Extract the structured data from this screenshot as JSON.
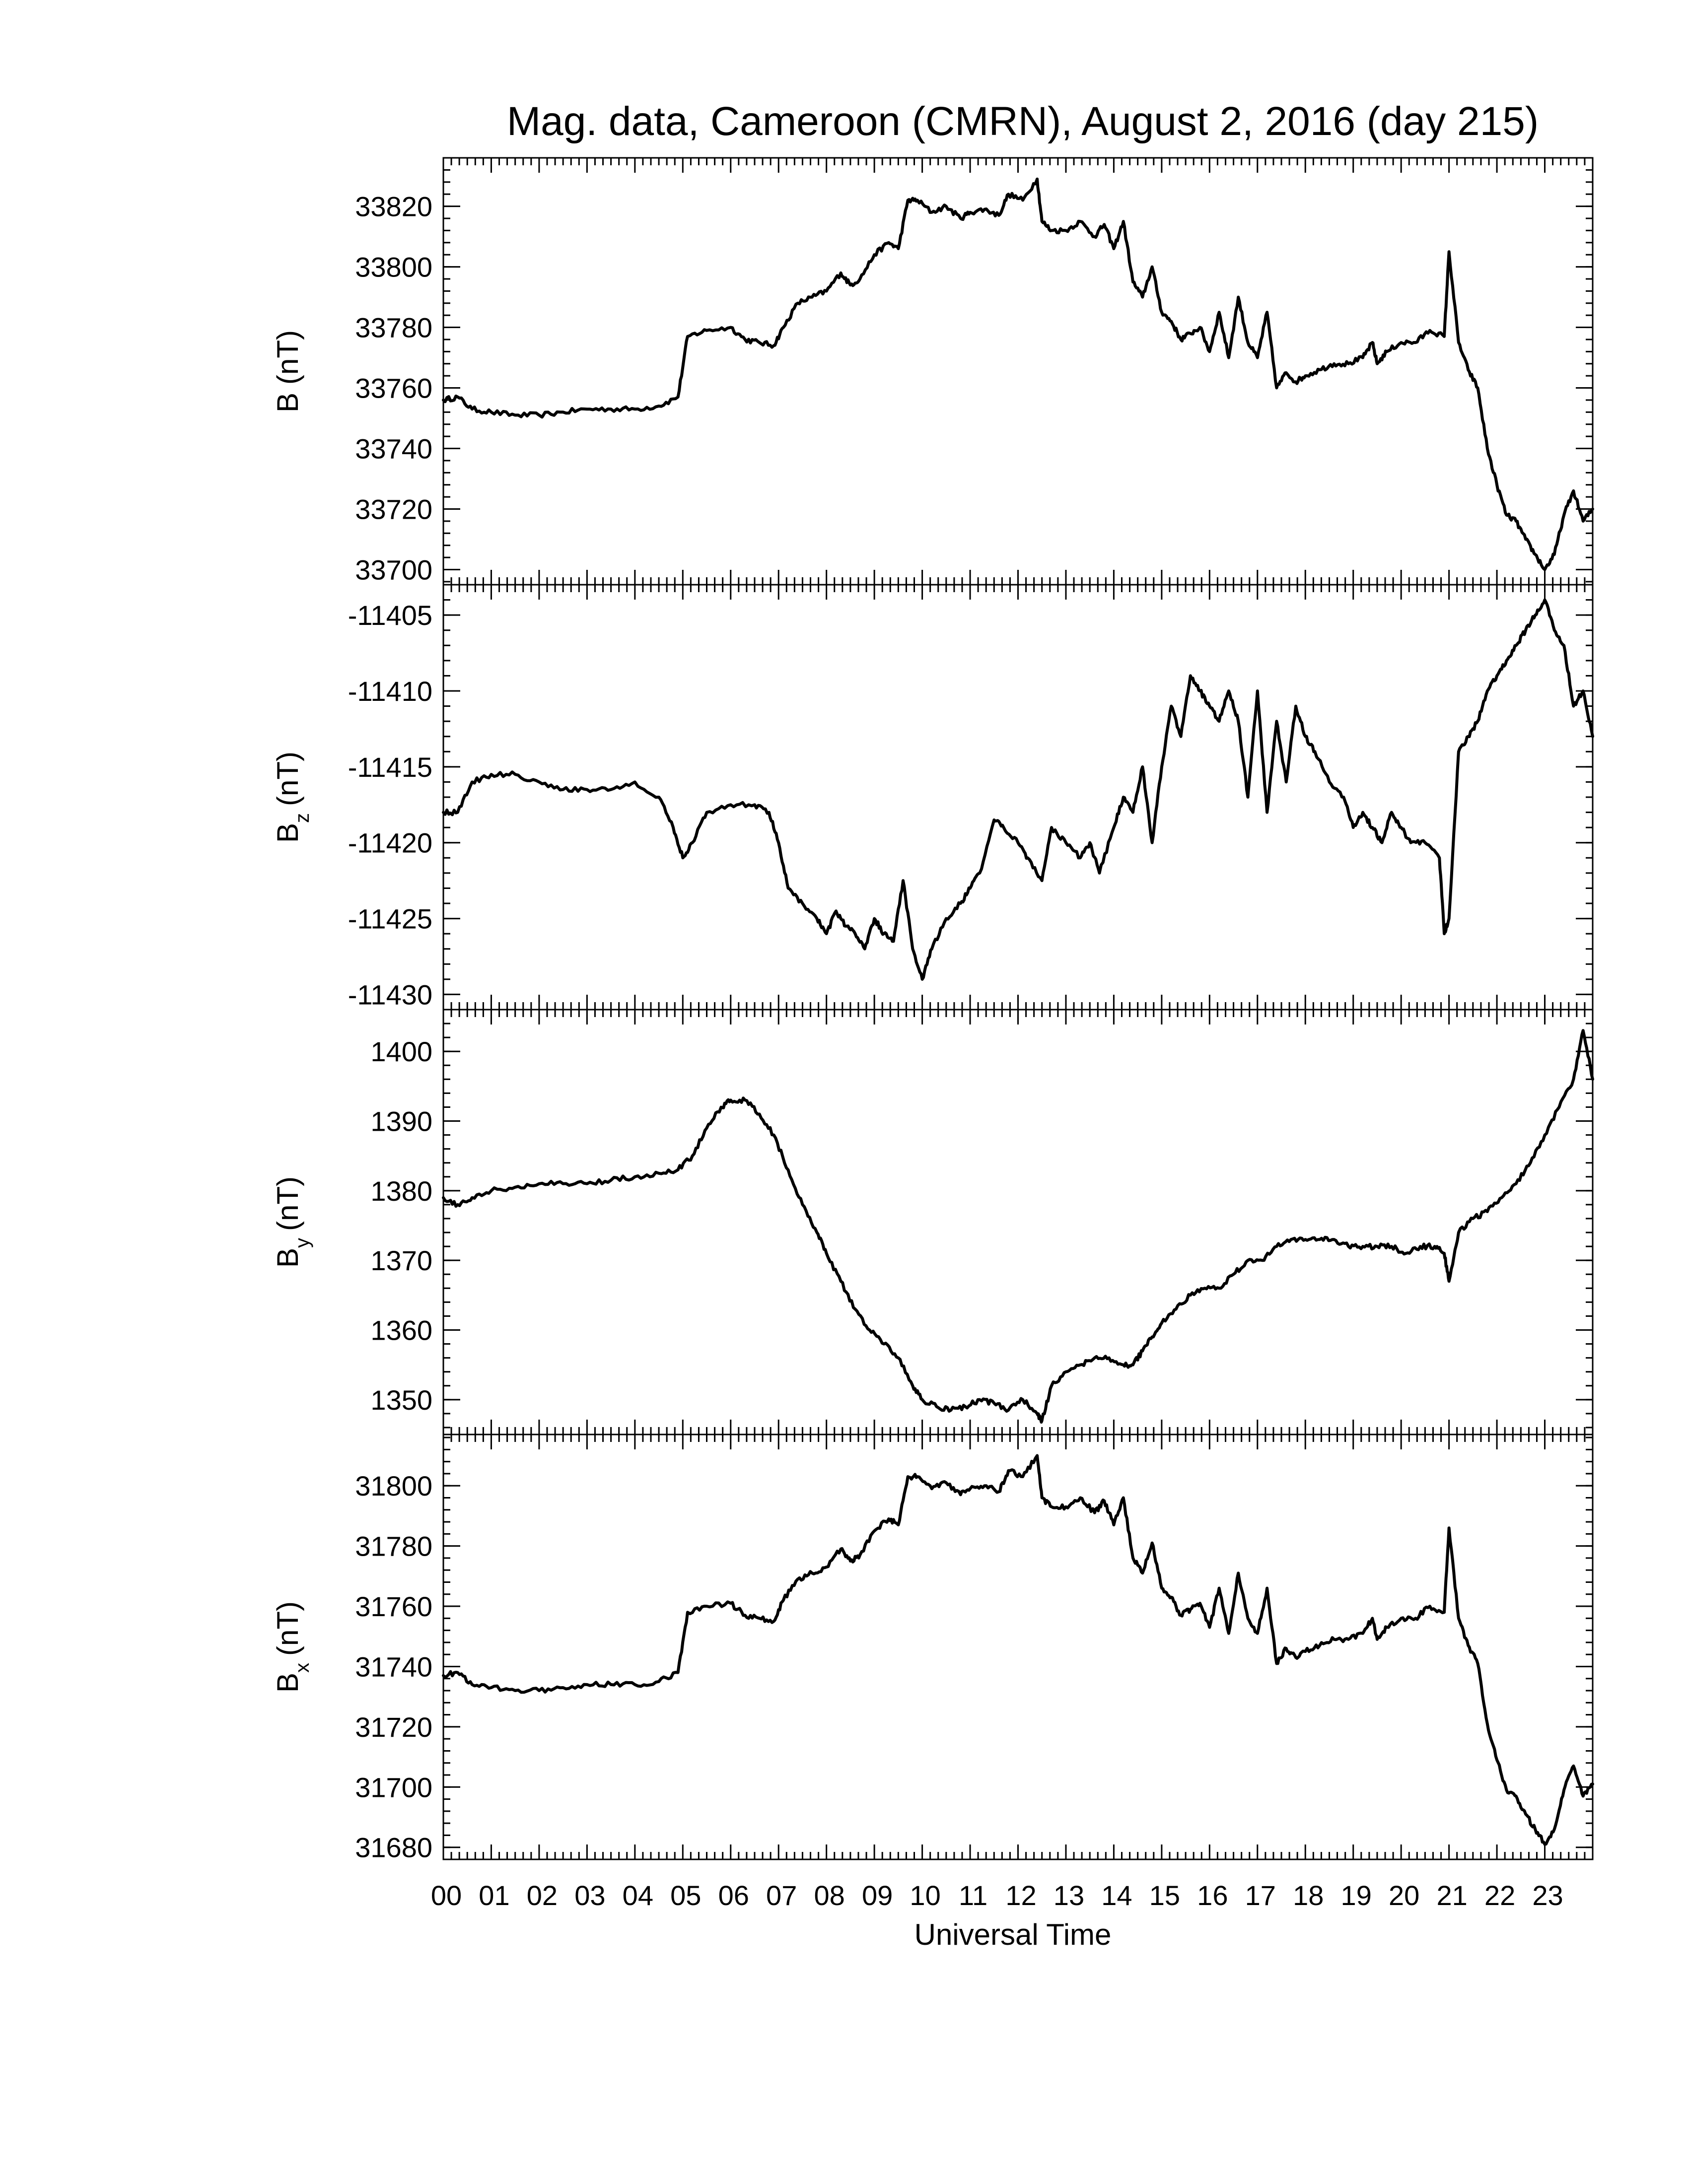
{
  "title": "Mag. data, Cameroon (CMRN), August 2, 2016 (day 215)",
  "chart_data": {
    "type": "line",
    "xlabel": "Universal Time",
    "x_unit": "hours UT",
    "xlim": [
      0,
      24
    ],
    "xtick_values": [
      0,
      1,
      2,
      3,
      4,
      5,
      6,
      7,
      8,
      9,
      10,
      11,
      12,
      13,
      14,
      15,
      16,
      17,
      18,
      19,
      20,
      21,
      22,
      23
    ],
    "xtick_labels": [
      "00",
      "01",
      "02",
      "03",
      "04",
      "05",
      "06",
      "07",
      "08",
      "09",
      "10",
      "11",
      "12",
      "13",
      "14",
      "15",
      "16",
      "17",
      "18",
      "19",
      "20",
      "21",
      "22",
      "23"
    ],
    "panels": [
      {
        "ylabel_main": "B",
        "ylabel_sub": "",
        "ylabel_unit": "(nT)",
        "ylim": [
          33695,
          33836
        ],
        "yticks": [
          33700,
          33720,
          33740,
          33760,
          33780,
          33800,
          33820
        ],
        "x": [
          0,
          0.3,
          0.6,
          1.0,
          1.5,
          2.0,
          2.5,
          3.0,
          3.5,
          4.0,
          4.5,
          4.9,
          5.1,
          5.5,
          6.0,
          6.3,
          6.6,
          6.9,
          7.1,
          7.4,
          7.7,
          8.0,
          8.3,
          8.5,
          8.7,
          9.0,
          9.3,
          9.5,
          9.7,
          9.9,
          10.2,
          10.5,
          10.8,
          11.0,
          11.3,
          11.6,
          11.8,
          12.1,
          12.4,
          12.5,
          12.7,
          13.0,
          13.3,
          13.6,
          13.8,
          14.0,
          14.2,
          14.4,
          14.6,
          14.8,
          15.0,
          15.2,
          15.4,
          15.6,
          15.8,
          16.0,
          16.2,
          16.4,
          16.6,
          16.8,
          17.0,
          17.2,
          17.4,
          17.6,
          17.8,
          18.0,
          18.3,
          18.6,
          18.9,
          19.2,
          19.4,
          19.5,
          19.7,
          20.0,
          20.3,
          20.6,
          20.9,
          21.0,
          21.2,
          21.4,
          21.6,
          21.8,
          22.0,
          22.2,
          22.4,
          22.6,
          22.8,
          23.0,
          23.2,
          23.4,
          23.6,
          23.8,
          24.0
        ],
        "y": [
          33756,
          33757,
          33753,
          33752,
          33751,
          33751,
          33752,
          33753,
          33753,
          33753,
          33754,
          33757,
          33777,
          33779,
          33780,
          33776,
          33775,
          33774,
          33780,
          33788,
          33790,
          33792,
          33798,
          33794,
          33796,
          33804,
          33808,
          33806,
          33822,
          33822,
          33818,
          33820,
          33816,
          33818,
          33819,
          33817,
          33824,
          33822,
          33829,
          33815,
          33812,
          33812,
          33815,
          33810,
          33814,
          33806,
          33815,
          33795,
          33790,
          33800,
          33785,
          33782,
          33776,
          33778,
          33780,
          33772,
          33785,
          33770,
          33790,
          33775,
          33770,
          33785,
          33760,
          33765,
          33762,
          33764,
          33766,
          33768,
          33768,
          33770,
          33775,
          33768,
          33772,
          33775,
          33775,
          33779,
          33777,
          33805,
          33775,
          33766,
          33760,
          33740,
          33728,
          33718,
          33716,
          33710,
          33705,
          33700,
          33705,
          33718,
          33726,
          33716,
          33720
        ]
      },
      {
        "ylabel_main": "B",
        "ylabel_sub": "z",
        "ylabel_unit": "(nT)",
        "ylim": [
          -11431,
          -11403
        ],
        "yticks": [
          -11430,
          -11425,
          -11420,
          -11415,
          -11410,
          -11405
        ],
        "x": [
          0,
          0.3,
          0.6,
          1.0,
          1.5,
          2.0,
          2.5,
          3.0,
          3.5,
          4.0,
          4.5,
          4.8,
          5.0,
          5.2,
          5.5,
          6.0,
          6.5,
          6.8,
          7.0,
          7.2,
          7.5,
          7.8,
          8.0,
          8.2,
          8.4,
          8.6,
          8.8,
          9.0,
          9.2,
          9.4,
          9.6,
          9.8,
          10.0,
          10.2,
          10.5,
          10.8,
          11.0,
          11.2,
          11.5,
          11.7,
          12.0,
          12.2,
          12.5,
          12.7,
          13.0,
          13.3,
          13.5,
          13.7,
          14.0,
          14.2,
          14.4,
          14.6,
          14.8,
          15.0,
          15.2,
          15.4,
          15.6,
          15.8,
          16.0,
          16.2,
          16.4,
          16.6,
          16.8,
          17.0,
          17.2,
          17.4,
          17.6,
          17.8,
          18.0,
          18.2,
          18.5,
          18.8,
          19.0,
          19.2,
          19.4,
          19.6,
          19.8,
          20.0,
          20.2,
          20.5,
          20.8,
          20.9,
          21.0,
          21.2,
          21.4,
          21.6,
          21.8,
          22.0,
          22.2,
          22.4,
          22.6,
          22.8,
          23.0,
          23.2,
          23.4,
          23.6,
          23.8,
          24.0
        ],
        "y": [
          -11418,
          -11418,
          -11416,
          -11415.5,
          -11415.5,
          -11416,
          -11416.5,
          -11416.5,
          -11416.5,
          -11416,
          -11417,
          -11419,
          -11421,
          -11420,
          -11418,
          -11417.5,
          -11417.5,
          -11418,
          -11420,
          -11423,
          -11424,
          -11425,
          -11426,
          -11424.5,
          -11425.5,
          -11426,
          -11427,
          -11425,
          -11426,
          -11426.5,
          -11422.5,
          -11427,
          -11429,
          -11427,
          -11425,
          -11424,
          -11423,
          -11422,
          -11418.5,
          -11419,
          -11420,
          -11421,
          -11422.5,
          -11419,
          -11420,
          -11421,
          -11420,
          -11422,
          -11419,
          -11417,
          -11418,
          -11415,
          -11420,
          -11415,
          -11411,
          -11413,
          -11409,
          -11410,
          -11411,
          -11412,
          -11410,
          -11412,
          -11417,
          -11410,
          -11418,
          -11412,
          -11416,
          -11411,
          -11413,
          -11414,
          -11416,
          -11417,
          -11419,
          -11418,
          -11419,
          -11420,
          -11418,
          -11419,
          -11420,
          -11420,
          -11421,
          -11426,
          -11425,
          -11414,
          -11413,
          -11412,
          -11410,
          -11409,
          -11408,
          -11407,
          -11406,
          -11405,
          -11404,
          -11406,
          -11407,
          -11411,
          -11410,
          -11413
        ]
      },
      {
        "ylabel_main": "B",
        "ylabel_sub": "y",
        "ylabel_unit": "(nT)",
        "ylim": [
          1345,
          1406
        ],
        "yticks": [
          1350,
          1360,
          1370,
          1380,
          1390,
          1400
        ],
        "x": [
          0,
          0.3,
          0.6,
          1.0,
          1.5,
          2.0,
          2.5,
          3.0,
          3.5,
          4.0,
          4.5,
          4.9,
          5.2,
          5.5,
          5.8,
          6.0,
          6.3,
          6.6,
          6.9,
          7.2,
          7.5,
          7.8,
          8.0,
          8.3,
          8.6,
          8.9,
          9.2,
          9.5,
          9.8,
          10.0,
          10.3,
          10.6,
          10.9,
          11.2,
          11.5,
          11.8,
          12.1,
          12.4,
          12.5,
          12.7,
          13.0,
          13.3,
          13.6,
          13.9,
          14.2,
          14.4,
          14.6,
          14.8,
          15.0,
          15.3,
          15.6,
          15.9,
          16.2,
          16.5,
          16.8,
          17.1,
          17.4,
          17.7,
          18.0,
          18.3,
          18.6,
          18.9,
          19.2,
          19.5,
          19.8,
          20.1,
          20.4,
          20.7,
          20.9,
          21.0,
          21.2,
          21.5,
          21.8,
          22.1,
          22.4,
          22.7,
          23.0,
          23.3,
          23.6,
          23.8,
          24.0
        ],
        "y": [
          1379,
          1378,
          1379,
          1380,
          1380.5,
          1381,
          1381,
          1381,
          1381.5,
          1382,
          1382.5,
          1383,
          1385,
          1389,
          1392,
          1393,
          1393,
          1391,
          1388,
          1383,
          1378,
          1374,
          1371,
          1367,
          1363,
          1360,
          1358,
          1356,
          1352,
          1350,
          1349,
          1348.5,
          1349,
          1350,
          1349.5,
          1348.5,
          1350,
          1348,
          1347,
          1352,
          1354,
          1355,
          1356,
          1356,
          1355,
          1355,
          1357,
          1359,
          1361,
          1363,
          1365,
          1366,
          1366,
          1368,
          1370,
          1370,
          1372,
          1373,
          1373,
          1373,
          1373,
          1372,
          1372,
          1372,
          1372,
          1371,
          1372,
          1372,
          1371,
          1367,
          1374,
          1376,
          1377,
          1379,
          1381,
          1384,
          1388,
          1392,
          1396,
          1403,
          1396
        ]
      },
      {
        "ylabel_main": "B",
        "ylabel_sub": "x",
        "ylabel_unit": "(nT)",
        "ylim": [
          31676,
          31817
        ],
        "yticks": [
          31680,
          31700,
          31720,
          31740,
          31760,
          31780,
          31800
        ],
        "x": [
          0,
          0.3,
          0.6,
          1.0,
          1.5,
          2.0,
          2.5,
          3.0,
          3.5,
          4.0,
          4.5,
          4.9,
          5.1,
          5.5,
          6.0,
          6.3,
          6.6,
          6.9,
          7.1,
          7.4,
          7.7,
          8.0,
          8.3,
          8.5,
          8.7,
          9.0,
          9.3,
          9.5,
          9.7,
          9.9,
          10.2,
          10.5,
          10.8,
          11.0,
          11.3,
          11.6,
          11.8,
          12.1,
          12.4,
          12.5,
          12.7,
          13.0,
          13.3,
          13.6,
          13.8,
          14.0,
          14.2,
          14.4,
          14.6,
          14.8,
          15.0,
          15.2,
          15.4,
          15.6,
          15.8,
          16.0,
          16.2,
          16.4,
          16.6,
          16.8,
          17.0,
          17.2,
          17.4,
          17.6,
          17.8,
          18.0,
          18.3,
          18.6,
          18.9,
          19.2,
          19.4,
          19.5,
          19.7,
          20.0,
          20.3,
          20.6,
          20.9,
          21.0,
          21.2,
          21.4,
          21.6,
          21.8,
          22.0,
          22.2,
          22.4,
          22.6,
          22.8,
          23.0,
          23.2,
          23.4,
          23.6,
          23.8,
          24.0
        ],
        "y": [
          31737,
          31738,
          31734,
          31733,
          31732,
          31732,
          31733,
          31734,
          31734,
          31734,
          31735,
          31738,
          31758,
          31760,
          31761,
          31757,
          31756,
          31755,
          31762,
          31769,
          31771,
          31773,
          31779,
          31775,
          31777,
          31785,
          31789,
          31787,
          31803,
          31803,
          31799,
          31801,
          31797,
          31799,
          31800,
          31798,
          31805,
          31803,
          31810,
          31796,
          31793,
          31793,
          31796,
          31791,
          31795,
          31787,
          31796,
          31776,
          31771,
          31781,
          31766,
          31763,
          31757,
          31759,
          31761,
          31753,
          31766,
          31751,
          31771,
          31756,
          31751,
          31766,
          31741,
          31746,
          31743,
          31745,
          31747,
          31749,
          31749,
          31751,
          31756,
          31749,
          31753,
          31756,
          31756,
          31760,
          31758,
          31786,
          31756,
          31747,
          31741,
          31721,
          31709,
          31699,
          31697,
          31691,
          31686,
          31681,
          31686,
          31699,
          31707,
          31697,
          31701
        ]
      }
    ]
  }
}
